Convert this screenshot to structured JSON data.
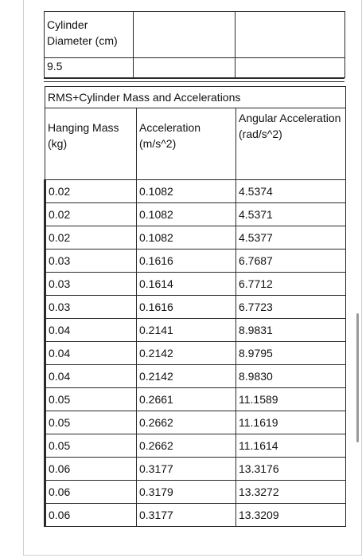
{
  "table1": {
    "label": "Cylinder Diameter (cm)",
    "value": "9.5"
  },
  "table2": {
    "title": "RMS+Cylinder Mass and Accelerations",
    "headers": [
      "Hanging Mass (kg)",
      "Acceleration (m/s^2)",
      "Angular Acceleration (rad/s^2)"
    ],
    "rows": [
      [
        "0.02",
        "0.1082",
        "4.5374"
      ],
      [
        "0.02",
        "0.1082",
        "4.5371"
      ],
      [
        "0.02",
        "0.1082",
        "4.5377"
      ],
      [
        "0.03",
        "0.1616",
        "6.7687"
      ],
      [
        "0.03",
        "0.1614",
        "6.7712"
      ],
      [
        "0.03",
        "0.1616",
        "6.7723"
      ],
      [
        "0.04",
        "0.2141",
        "8.9831"
      ],
      [
        "0.04",
        "0.2142",
        "8.9795"
      ],
      [
        "0.04",
        "0.2142",
        "8.9830"
      ],
      [
        "0.05",
        "0.2661",
        "11.1589"
      ],
      [
        "0.05",
        "0.2662",
        "11.1619"
      ],
      [
        "0.05",
        "0.2662",
        "11.1614"
      ],
      [
        "0.06",
        "0.3177",
        "13.3176"
      ],
      [
        "0.06",
        "0.3179",
        "13.3272"
      ],
      [
        "0.06",
        "0.3177",
        "13.3209"
      ]
    ]
  }
}
